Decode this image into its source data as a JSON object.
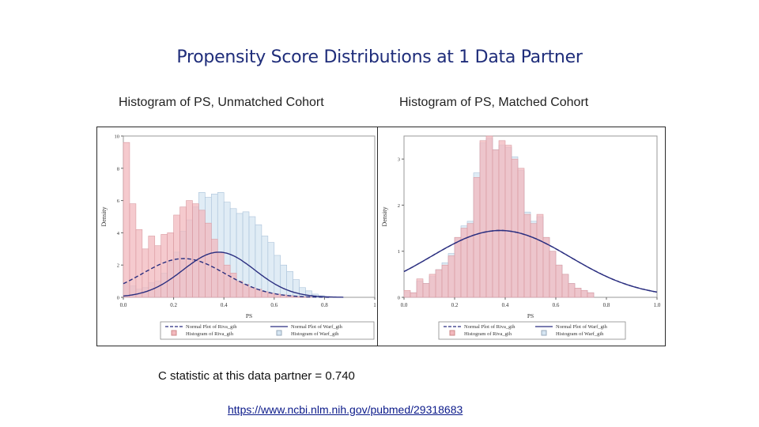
{
  "page": {
    "title": "Propensity Score Distributions at 1 Data Partner",
    "c_statistic": "C statistic at this data partner = 0.740",
    "link": "https://www.ncbi.nlm.nih.gov/pubmed/29318683"
  },
  "colors": {
    "riva": "#f2b8bd",
    "warf": "#d5e5f2",
    "curve": "#2b2f80"
  },
  "chart_data": [
    {
      "type": "histogram",
      "title": "Histogram of PS, Unmatched Cohort",
      "xlabel": "PS",
      "ylabel": "Density",
      "xlim": [
        0,
        1
      ],
      "ylim": [
        0,
        10
      ],
      "xticks": [
        "0.0",
        "0.2",
        "0.4",
        "0.6",
        "0.8",
        "1"
      ],
      "yticks": [
        "0",
        "2",
        "4",
        "6",
        "8",
        "10"
      ],
      "bin_width": 0.025,
      "riva_density": [
        9.6,
        5.8,
        4.2,
        3.0,
        3.8,
        3.2,
        3.9,
        4.0,
        5.1,
        5.6,
        6.0,
        5.8,
        5.4,
        4.6,
        3.6,
        2.8,
        2.0,
        1.5,
        1.0,
        0.8,
        0.6,
        0.5,
        0.35,
        0.25,
        0.2,
        0.15,
        0.1,
        0.05,
        0.03,
        0.02
      ],
      "warf_density": [
        0.9,
        0.7,
        0.5,
        0.6,
        0.9,
        1.0,
        1.5,
        2.2,
        2.8,
        4.1,
        4.8,
        5.6,
        6.5,
        6.2,
        6.4,
        6.5,
        5.9,
        5.5,
        5.2,
        5.3,
        5.0,
        4.5,
        3.8,
        3.4,
        2.6,
        2.0,
        1.6,
        1.1,
        0.6,
        0.4,
        0.2,
        0.1
      ],
      "riva_normal": {
        "mean": 0.24,
        "peak": 2.4
      },
      "warf_normal": {
        "mean": 0.38,
        "peak": 2.8
      },
      "legend": [
        "Normal Plot of Riva_gih",
        "Normal Plot of Warf_gih",
        "Histogram of Riva_gih",
        "Histogram of Warf_gih"
      ]
    },
    {
      "type": "histogram",
      "title": "Histogram of PS, Matched Cohort",
      "xlabel": "PS",
      "ylabel": "Density",
      "xlim": [
        0,
        1
      ],
      "ylim": [
        0,
        3.5
      ],
      "xticks": [
        "0.0",
        "0.2",
        "0.4",
        "0.6",
        "0.8",
        "1.0"
      ],
      "yticks": [
        "0",
        "1",
        "2",
        "3"
      ],
      "bin_width": 0.025,
      "riva_density": [
        0.15,
        0.1,
        0.4,
        0.3,
        0.5,
        0.6,
        0.7,
        0.9,
        1.3,
        1.5,
        1.6,
        2.6,
        3.4,
        3.5,
        3.2,
        3.4,
        3.3,
        3.0,
        2.8,
        1.8,
        1.6,
        1.8,
        1.3,
        1.0,
        0.7,
        0.5,
        0.3,
        0.2,
        0.15,
        0.1
      ],
      "warf_density": [
        0.12,
        0.1,
        0.35,
        0.3,
        0.45,
        0.6,
        0.75,
        0.95,
        1.3,
        1.55,
        1.65,
        2.7,
        3.35,
        3.45,
        3.2,
        3.3,
        3.25,
        3.05,
        2.75,
        1.85,
        1.65,
        1.75,
        1.3,
        1.0,
        0.7,
        0.5,
        0.3,
        0.2,
        0.15,
        0.1
      ],
      "riva_normal": {
        "mean": 0.38,
        "peak": 1.45
      },
      "warf_normal": {
        "mean": 0.38,
        "peak": 1.45
      },
      "legend": [
        "Normal Plot of Riva_gih",
        "Normal Plot of Warf_gih",
        "Histogram of Riva_gih",
        "Histogram of Warf_gih"
      ]
    }
  ]
}
